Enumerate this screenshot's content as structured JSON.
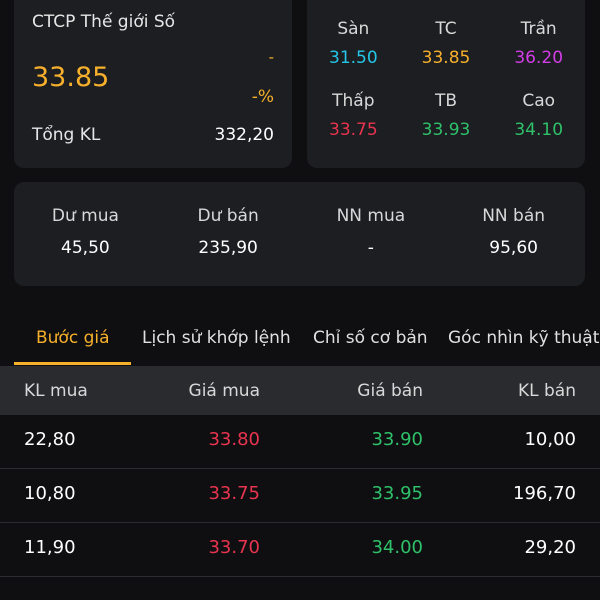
{
  "stock": {
    "name": "CTCP Thế giới Số",
    "price": "33.85",
    "change": "-",
    "change_pct": "-%",
    "volume_label": "Tổng KL",
    "volume_value": "332,20"
  },
  "price_grid": [
    [
      {
        "label": "Sàn",
        "value": "31.50",
        "color": "#25c5e8"
      },
      {
        "label": "TC",
        "value": "33.85",
        "color": "#f7b02b"
      },
      {
        "label": "Trần",
        "value": "36.20",
        "color": "#d23de6"
      }
    ],
    [
      {
        "label": "Thấp",
        "value": "33.75",
        "color": "#e8344e"
      },
      {
        "label": "TB",
        "value": "33.93",
        "color": "#2fc16a"
      },
      {
        "label": "Cao",
        "value": "34.10",
        "color": "#2fc16a"
      }
    ]
  ],
  "flow": [
    {
      "label": "Dư mua",
      "value": "45,50"
    },
    {
      "label": "Dư bán",
      "value": "235,90"
    },
    {
      "label": "NN mua",
      "value": "-"
    },
    {
      "label": "NN bán",
      "value": "95,60"
    }
  ],
  "tabs": [
    "Bước giá",
    "Lịch sử khớp lệnh",
    "Chỉ số cơ bản",
    "Góc nhìn kỹ thuật"
  ],
  "active_tab": 0,
  "table": {
    "headers": [
      "KL mua",
      "Giá mua",
      "Giá bán",
      "KL bán"
    ],
    "rows": [
      [
        "22,80",
        "33.80",
        "33.90",
        "10,00"
      ],
      [
        "10,80",
        "33.75",
        "33.95",
        "196,70"
      ],
      [
        "11,90",
        "33.70",
        "34.00",
        "29,20"
      ]
    ]
  },
  "colors": {
    "accent": "#f7b02b",
    "down": "#e8344e",
    "up": "#2fc16a",
    "floor": "#25c5e8",
    "ceiling": "#d23de6"
  }
}
